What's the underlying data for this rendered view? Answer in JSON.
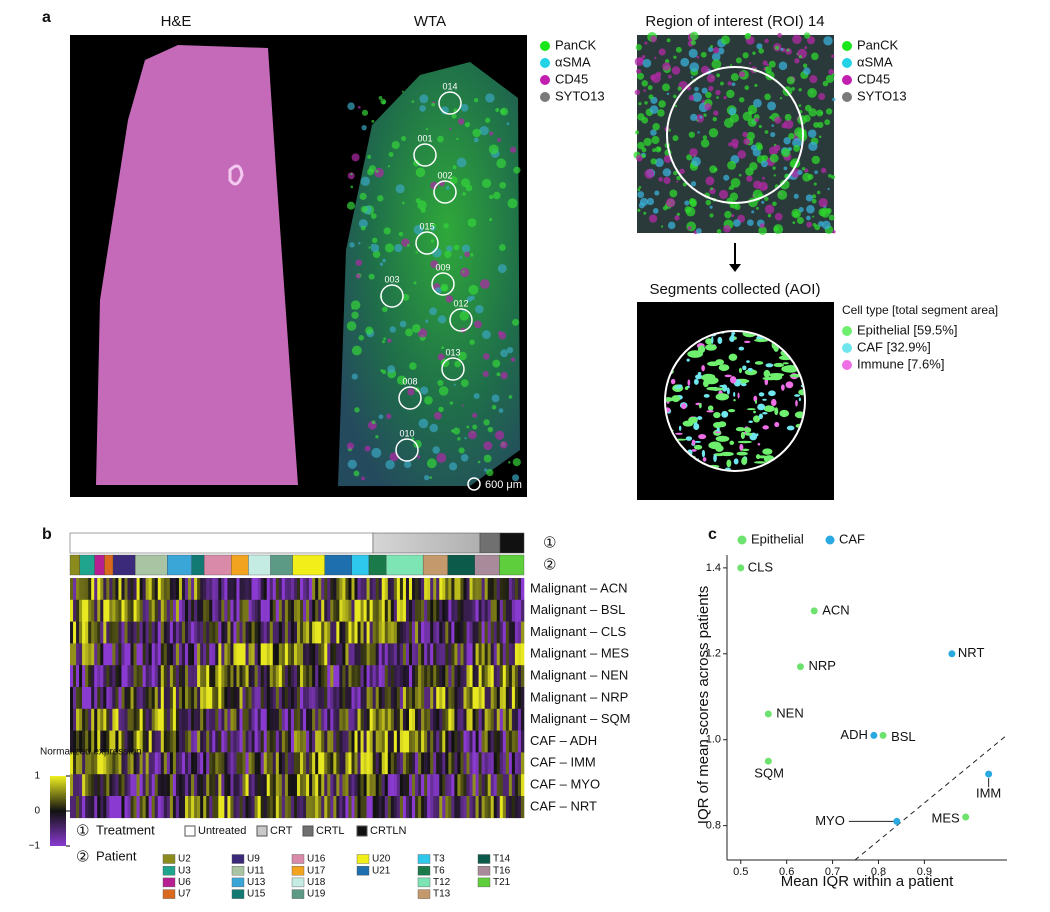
{
  "panel_a": {
    "label": "a",
    "he_title": "H&E",
    "wta_title": "WTA",
    "stain_legend": [
      {
        "name": "PanCK",
        "color": "#19e619"
      },
      {
        "name": "αSMA",
        "color": "#22d3e6"
      },
      {
        "name": "CD45",
        "color": "#c21fb0"
      },
      {
        "name": "SYTO13",
        "color": "#7a7a7a"
      }
    ],
    "rois": [
      "014",
      "001",
      "002",
      "015",
      "003",
      "009",
      "012",
      "013",
      "008",
      "010"
    ],
    "scale_bar": "600 μm",
    "roi_title": "Region of interest (ROI) 14",
    "aoi_title": "Segments collected (AOI)",
    "cell_type_title": "Cell type [total segment area]",
    "cell_types": [
      {
        "name": "Epithelial [59.5%]",
        "color": "#6ef06e"
      },
      {
        "name": "CAF [32.9%]",
        "color": "#6fe6ee"
      },
      {
        "name": "Immune [7.6%]",
        "color": "#ee6fe6"
      }
    ]
  },
  "panel_b": {
    "label": "b",
    "marker_1": "①",
    "marker_2": "②",
    "rows": [
      "Malignant – ACN",
      "Malignant – BSL",
      "Malignant – CLS",
      "Malignant – MES",
      "Malignant – NEN",
      "Malignant – NRP",
      "Malignant – SQM",
      "CAF – ADH",
      "CAF – IMM",
      "CAF – MYO",
      "CAF – NRT"
    ],
    "colorbar_title": "Normalized expression",
    "colorbar_ticks": [
      1,
      0,
      {
        "value": -1,
        "label": "−1"
      }
    ],
    "treatment_title": "Treatment",
    "treatments": [
      {
        "name": "Untreated",
        "color": "#ffffff"
      },
      {
        "name": "CRT",
        "color": "#c8c8c8"
      },
      {
        "name": "CRTL",
        "color": "#707070"
      },
      {
        "name": "CRTLN",
        "color": "#111111"
      }
    ],
    "patient_title": "Patient",
    "patients": [
      {
        "name": "U2",
        "color": "#8c8c1e"
      },
      {
        "name": "U3",
        "color": "#1fa58e"
      },
      {
        "name": "U6",
        "color": "#b51f92"
      },
      {
        "name": "U7",
        "color": "#d9691e"
      },
      {
        "name": "U9",
        "color": "#3b2a7a"
      },
      {
        "name": "U11",
        "color": "#a8c4a2"
      },
      {
        "name": "U13",
        "color": "#3aa6d8"
      },
      {
        "name": "U15",
        "color": "#137a73"
      },
      {
        "name": "U16",
        "color": "#d88aa8"
      },
      {
        "name": "U17",
        "color": "#f2a31f"
      },
      {
        "name": "U18",
        "color": "#c4ece2"
      },
      {
        "name": "U19",
        "color": "#5d9a86"
      },
      {
        "name": "U20",
        "color": "#f2ee1a"
      },
      {
        "name": "U21",
        "color": "#1e6fad"
      },
      {
        "name": "T3",
        "color": "#2ec8ec"
      },
      {
        "name": "T6",
        "color": "#1a7a4a"
      },
      {
        "name": "T12",
        "color": "#7de4b4"
      },
      {
        "name": "T13",
        "color": "#c49a6c"
      },
      {
        "name": "T14",
        "color": "#0c5a4a"
      },
      {
        "name": "T16",
        "color": "#a98a9a"
      },
      {
        "name": "T21",
        "color": "#5fce3c"
      }
    ]
  },
  "chart_data": {
    "type": "scatter",
    "label": "c",
    "xlabel": "Mean IQR within a patient",
    "ylabel": "IQR of mean scores across patients",
    "xlim": [
      0.47,
      1.08
    ],
    "ylim": [
      0.72,
      1.43
    ],
    "xticks": [
      0.5,
      0.6,
      0.7,
      0.8,
      0.9
    ],
    "yticks": [
      0.8,
      {
        "value": 1,
        "label": "1.0"
      },
      1.2,
      1.4
    ],
    "series": [
      {
        "name": "Epithelial",
        "color": "#6ee26e",
        "labels": [
          "CLS",
          "ACN",
          "NRP",
          "NEN",
          "SQM",
          "BSL",
          "MES"
        ],
        "x": [
          0.5,
          0.66,
          0.63,
          0.56,
          0.56,
          0.81,
          0.99
        ],
        "values": [
          1.4,
          1.3,
          1.17,
          1.06,
          0.95,
          1.01,
          0.82
        ]
      },
      {
        "name": "CAF",
        "color": "#29a9e0",
        "labels": [
          "NRT",
          "ADH",
          "IMM",
          "MYO"
        ],
        "x": [
          0.96,
          0.79,
          1.04,
          0.84
        ],
        "values": [
          1.2,
          1.01,
          0.92,
          0.81
        ]
      }
    ]
  }
}
